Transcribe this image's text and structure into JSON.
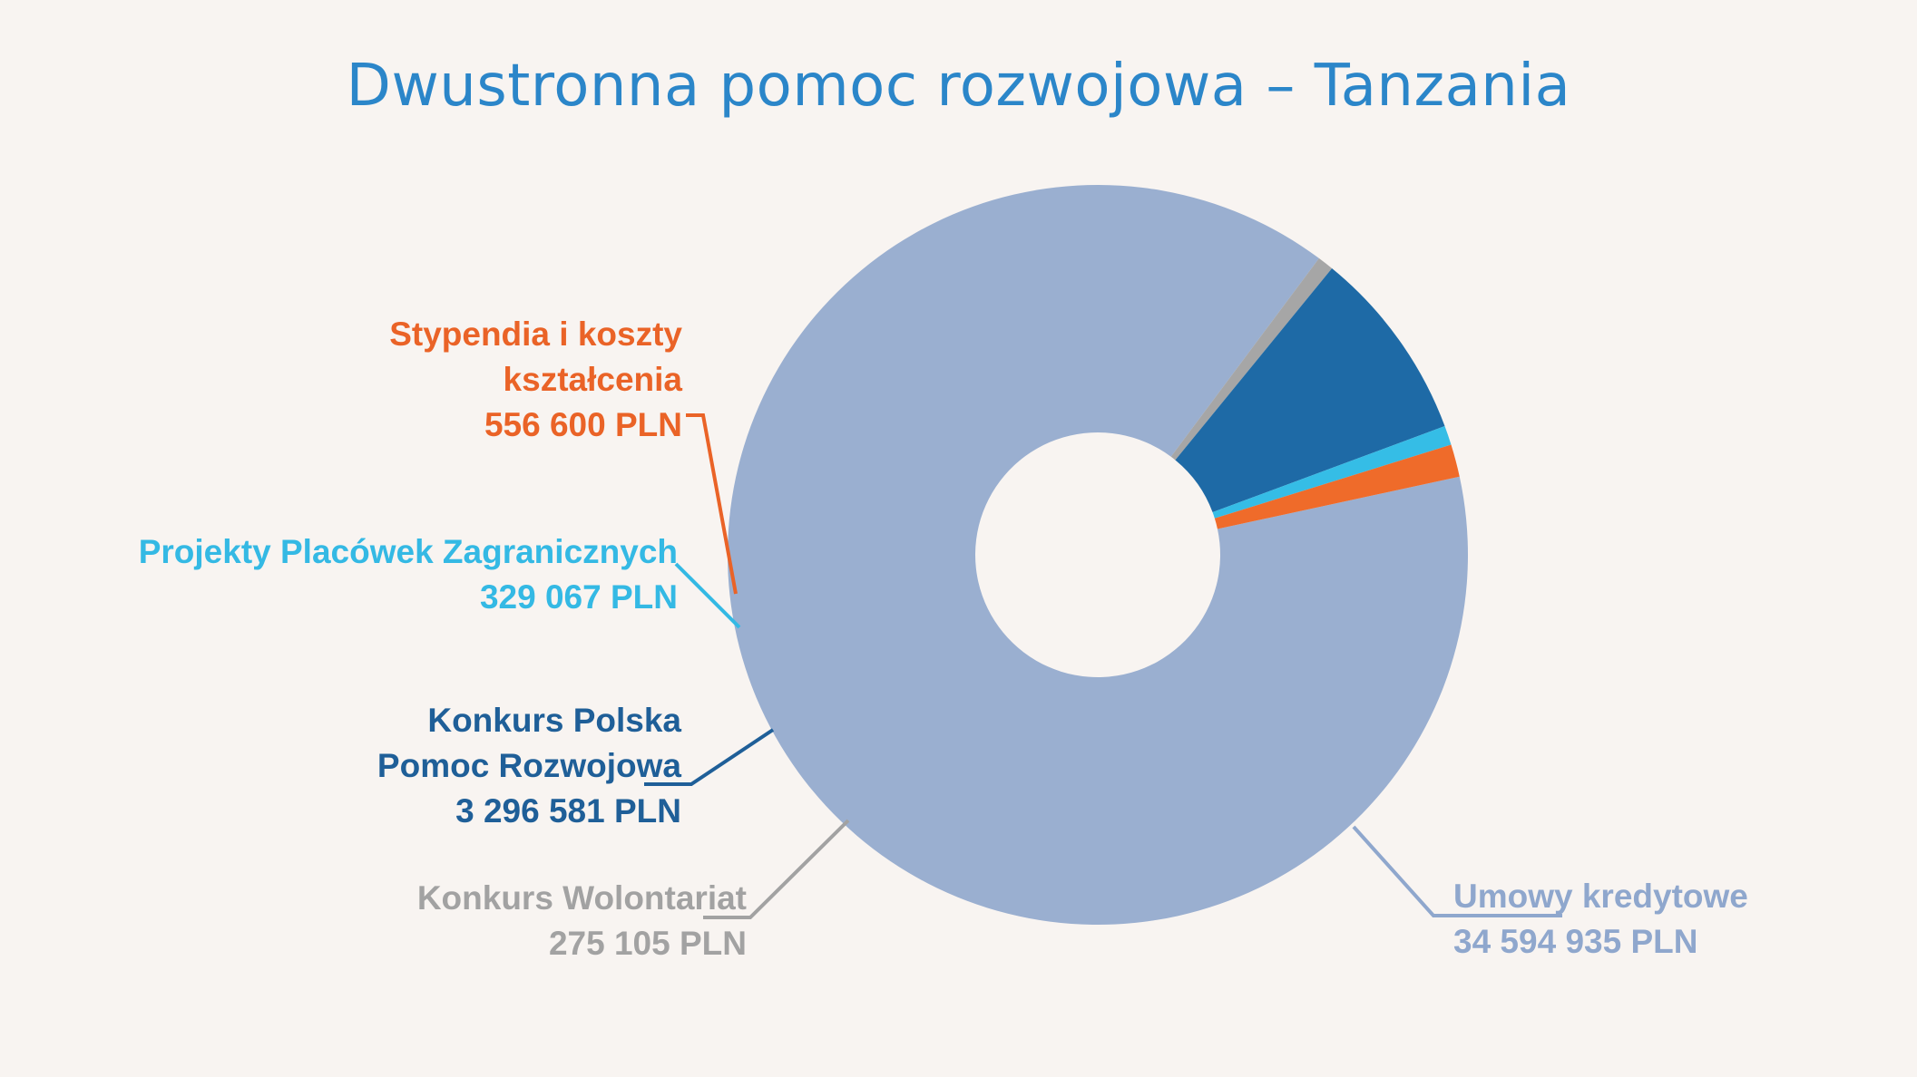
{
  "chart_data": {
    "type": "pie",
    "title": "Dwustronna pomoc rozwojowa – Tanzania",
    "donut": true,
    "slices": [
      {
        "key": "kredyt",
        "label": "Umowy kredytowe",
        "value_text": "34 594 935 PLN",
        "value": 34594935,
        "color": "#9aafd0"
      },
      {
        "key": "stypendia",
        "label": "Stypendia i koszty kształcenia",
        "label_lines": [
          "Stypendia i koszty",
          "kształcenia"
        ],
        "value_text": "556 600 PLN",
        "value": 556600,
        "color": "#ef6b2a"
      },
      {
        "key": "placowki",
        "label": "Projekty Placówek Zagranicznych",
        "value_text": "329 067 PLN",
        "value": 329067,
        "color": "#35bde6"
      },
      {
        "key": "ppr",
        "label": "Konkurs Polska Pomoc Rozwojowa",
        "label_lines": [
          "Konkurs Polska",
          "Pomoc Rozwojowa"
        ],
        "value_text": "3 296 581 PLN",
        "value": 3296581,
        "color": "#1e6aa6"
      },
      {
        "key": "wolont",
        "label": "Konkurs Wolontariat",
        "value_text": "275 105 PLN",
        "value": 275105,
        "color": "#a6a6a6"
      }
    ]
  }
}
